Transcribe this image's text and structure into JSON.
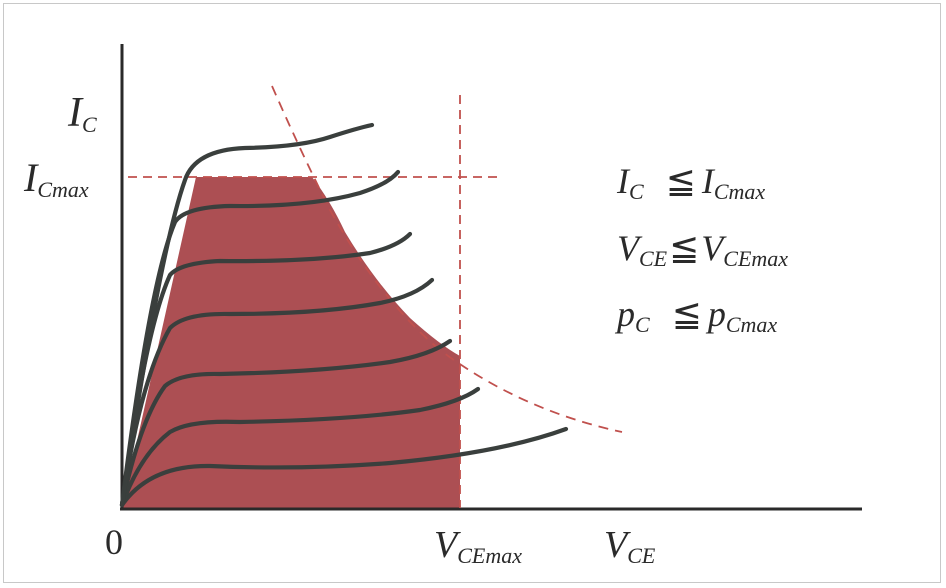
{
  "axes": {
    "y_label": {
      "main": "I",
      "sub": "C"
    },
    "y_max_label": {
      "main": "I",
      "sub": "Cmax"
    },
    "x_label": {
      "main": "V",
      "sub": "CE"
    },
    "x_max_label": {
      "main": "V",
      "sub": "CEmax"
    },
    "origin": "0"
  },
  "conditions": [
    {
      "lhs": "I",
      "lhs_sub": "C",
      "op": "≦",
      "rhs": "I",
      "rhs_sub": "Cmax"
    },
    {
      "lhs": "V",
      "lhs_sub": "CE",
      "op": "≦",
      "rhs": "V",
      "rhs_sub": "CEmax"
    },
    {
      "lhs": "p",
      "lhs_sub": "C",
      "op": "≦",
      "rhs": "p",
      "rhs_sub": "Cmax"
    }
  ],
  "colors": {
    "safe_area": "#a8464a",
    "limit_lines": "#c0504d",
    "curves": "#3a3f3d",
    "axes": "#2a2a2a"
  }
}
